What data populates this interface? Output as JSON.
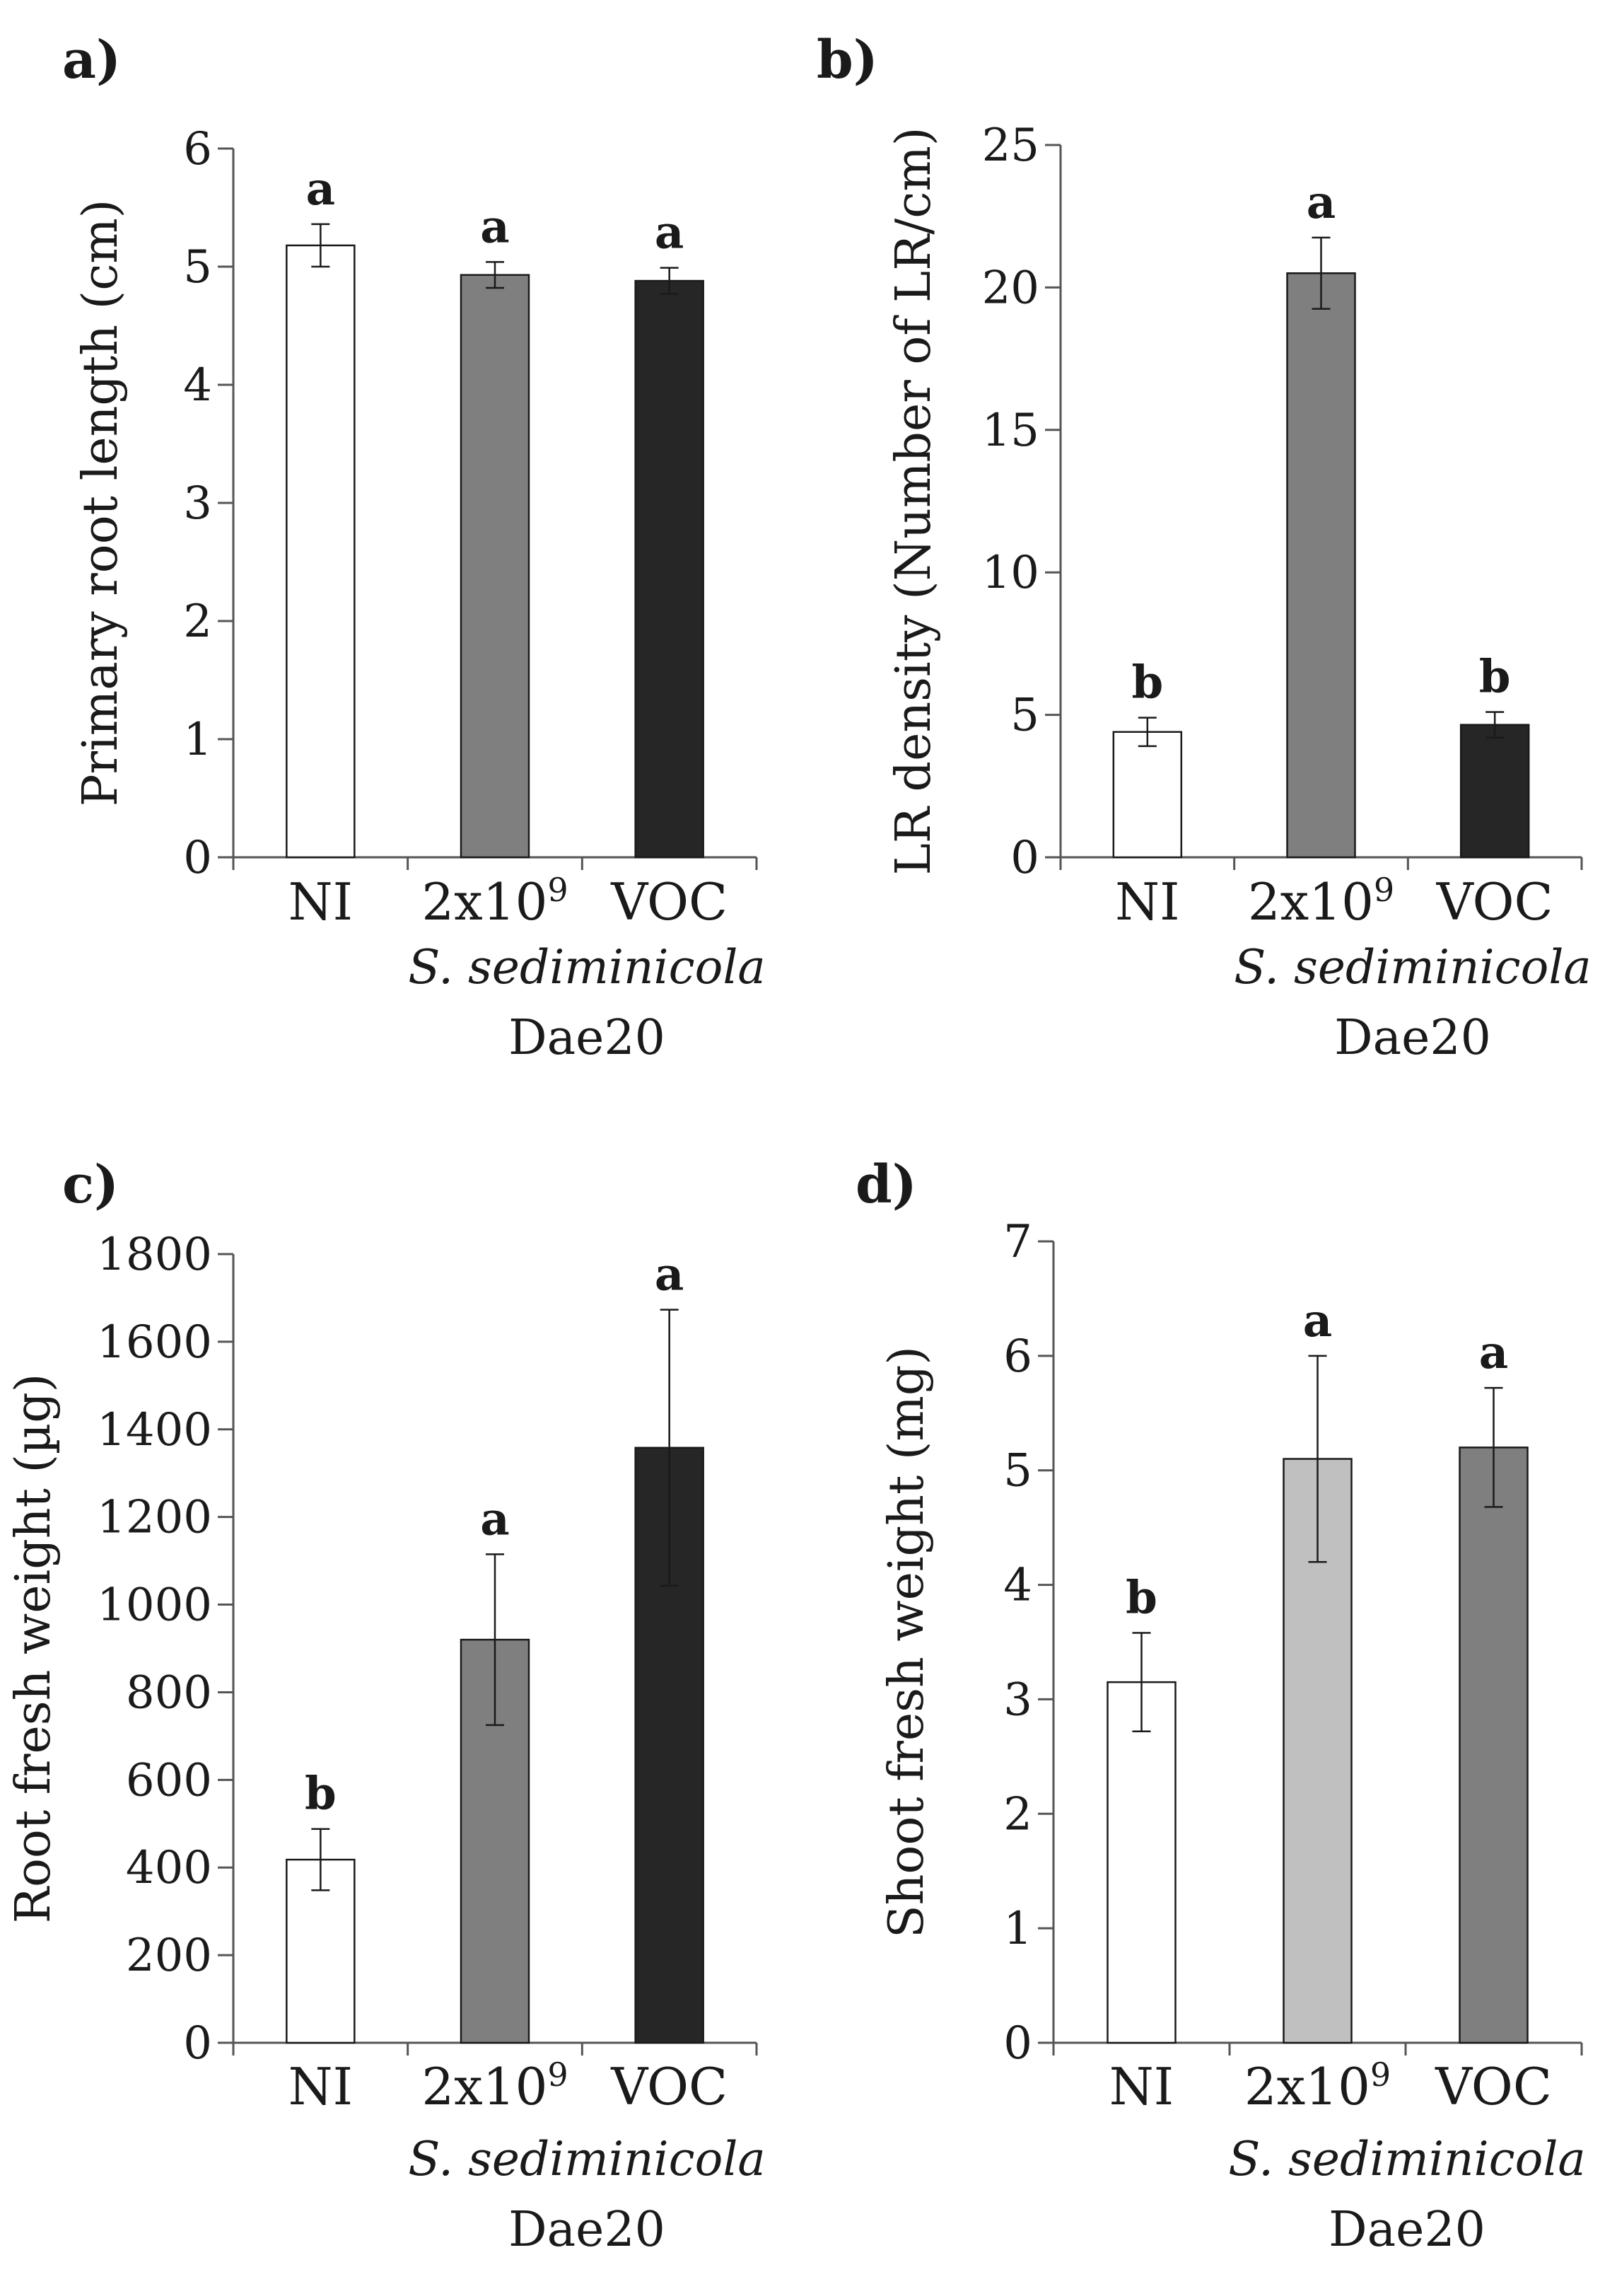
{
  "chart_data": [
    {
      "id": "a",
      "type": "bar",
      "panel_label": "a)",
      "title": "",
      "ylabel": "Primary root length (cm)",
      "xlabel": "",
      "ylim": [
        0,
        6
      ],
      "yticks": [
        0,
        1,
        2,
        3,
        4,
        5,
        6
      ],
      "categories": [
        "NI",
        "2x10",
        "VOC"
      ],
      "category_superscripts": [
        "",
        "9",
        ""
      ],
      "group_label_italic": "S. sediminicola",
      "group_label": "Dae20",
      "values": [
        5.18,
        4.93,
        4.88
      ],
      "errors": [
        0.18,
        0.11,
        0.11
      ],
      "significance": [
        "a",
        "a",
        "a"
      ],
      "bar_colors": [
        "#ffffff",
        "#7f7f7f",
        "#262626"
      ]
    },
    {
      "id": "b",
      "type": "bar",
      "panel_label": "b)",
      "title": "",
      "ylabel": "LR density (Number of LR/cm)",
      "xlabel": "",
      "ylim": [
        0,
        25
      ],
      "yticks": [
        0,
        5,
        10,
        15,
        20,
        25
      ],
      "categories": [
        "NI",
        "2x10",
        "VOC"
      ],
      "category_superscripts": [
        "",
        "9",
        ""
      ],
      "group_label_italic": "S. sediminicola",
      "group_label": "Dae20",
      "values": [
        4.4,
        20.5,
        4.65
      ],
      "errors": [
        0.5,
        1.25,
        0.45
      ],
      "significance": [
        "b",
        "a",
        "b"
      ],
      "bar_colors": [
        "#ffffff",
        "#7f7f7f",
        "#262626"
      ]
    },
    {
      "id": "c",
      "type": "bar",
      "panel_label": "c)",
      "title": "",
      "ylabel": "Root fresh weight (µg)",
      "xlabel": "",
      "ylim": [
        0,
        1800
      ],
      "yticks": [
        0,
        200,
        400,
        600,
        800,
        1000,
        1200,
        1400,
        1600,
        1800
      ],
      "categories": [
        "NI",
        "2x10",
        "VOC"
      ],
      "category_superscripts": [
        "",
        "9",
        ""
      ],
      "group_label_italic": "S. sediminicola",
      "group_label": "Dae20",
      "values": [
        418,
        920,
        1358
      ],
      "errors": [
        70,
        195,
        315
      ],
      "significance": [
        "b",
        "a",
        "a"
      ],
      "bar_colors": [
        "#ffffff",
        "#7f7f7f",
        "#262626"
      ]
    },
    {
      "id": "d",
      "type": "bar",
      "panel_label": "d)",
      "title": "",
      "ylabel": "Shoot fresh weight (mg)",
      "xlabel": "",
      "ylim": [
        0,
        7
      ],
      "yticks": [
        0,
        1,
        2,
        3,
        4,
        5,
        6,
        7
      ],
      "categories": [
        "NI",
        "2x10",
        "VOC"
      ],
      "category_superscripts": [
        "",
        "9",
        ""
      ],
      "group_label_italic": "S. sediminicola",
      "group_label": "Dae20",
      "values": [
        3.15,
        5.1,
        5.2
      ],
      "errors": [
        0.43,
        0.9,
        0.52
      ],
      "significance": [
        "b",
        "a",
        "a"
      ],
      "bar_colors": [
        "#ffffff",
        "#c0c0c0",
        "#7f7f7f"
      ]
    }
  ]
}
